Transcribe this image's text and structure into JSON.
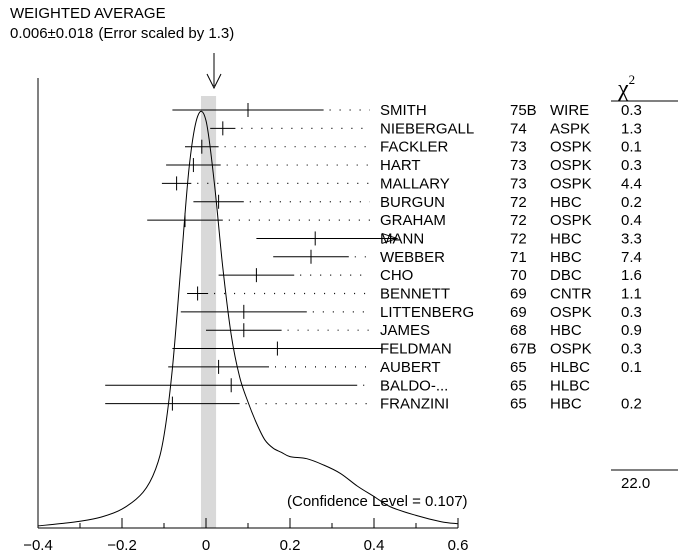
{
  "chart_data": {
    "type": "ideogram",
    "header": {
      "title": "WEIGHTED AVERAGE",
      "value": "0.006",
      "pm": "±",
      "error": "0.018",
      "note": "(Error scaled by 1.3)"
    },
    "weighted_average": 0.006,
    "weighted_error": 0.018,
    "chi2_header": "χ",
    "chi2_sup": "2",
    "xlim": [
      -0.4,
      0.6
    ],
    "xticks": [
      -0.4,
      -0.2,
      0,
      0.2,
      0.4,
      0.6
    ],
    "xtick_labels": [
      "−0.4",
      "−0.2",
      "0",
      "0.2",
      "0.4",
      "0.6"
    ],
    "measurements": [
      {
        "author": "SMITH",
        "year": "75B",
        "tech": "WIRE",
        "chi2": "0.3",
        "value": 0.1,
        "error": 0.18
      },
      {
        "author": "NIEBERGALL",
        "year": "74",
        "tech": "ASPK",
        "chi2": "1.3",
        "value": 0.04,
        "error": 0.03
      },
      {
        "author": "FACKLER",
        "year": "73",
        "tech": "OSPK",
        "chi2": "0.1",
        "value": -0.01,
        "error": 0.04
      },
      {
        "author": "HART",
        "year": "73",
        "tech": "OSPK",
        "chi2": "0.3",
        "value": -0.03,
        "error": 0.065
      },
      {
        "author": "MALLARY",
        "year": "73",
        "tech": "OSPK",
        "chi2": "4.4",
        "value": -0.07,
        "error": 0.035
      },
      {
        "author": "BURGUN",
        "year": "72",
        "tech": "HBC",
        "chi2": "0.2",
        "value": 0.03,
        "error": 0.06
      },
      {
        "author": "GRAHAM",
        "year": "72",
        "tech": "OSPK",
        "chi2": "0.4",
        "value": -0.05,
        "error": 0.09
      },
      {
        "author": "MANN",
        "year": "72",
        "tech": "HBC",
        "chi2": "3.3",
        "value": 0.26,
        "error": 0.14,
        "arrow": true
      },
      {
        "author": "WEBBER",
        "year": "71",
        "tech": "HBC",
        "chi2": "7.4",
        "value": 0.25,
        "error": 0.09
      },
      {
        "author": "CHO",
        "year": "70",
        "tech": "DBC",
        "chi2": "1.6",
        "value": 0.12,
        "error": 0.09
      },
      {
        "author": "BENNETT",
        "year": "69",
        "tech": "CNTR",
        "chi2": "1.1",
        "value": -0.02,
        "error": 0.025
      },
      {
        "author": "LITTENBERG",
        "year": "69",
        "tech": "OSPK",
        "chi2": "0.3",
        "value": 0.09,
        "error": 0.15
      },
      {
        "author": "JAMES",
        "year": "68",
        "tech": "HBC",
        "chi2": "0.9",
        "value": 0.09,
        "error": 0.09
      },
      {
        "author": "FELDMAN",
        "year": "67B",
        "tech": "OSPK",
        "chi2": "0.3",
        "value": 0.17,
        "error": 0.25
      },
      {
        "author": "AUBERT",
        "year": "65",
        "tech": "HLBC",
        "chi2": "0.1",
        "value": 0.03,
        "error": 0.12
      },
      {
        "author": "BALDO-...",
        "year": "65",
        "tech": "HLBC",
        "chi2": "",
        "value": 0.06,
        "error": 0.3
      },
      {
        "author": "FRANZINI",
        "year": "65",
        "tech": "HBC",
        "chi2": "0.2",
        "value": -0.08,
        "error": 0.16
      }
    ],
    "chi2_total": "22.0",
    "confidence_level": "(Confidence Level = 0.107)",
    "ideogram_curve": [
      [
        -0.4,
        0.005
      ],
      [
        -0.35,
        0.01
      ],
      [
        -0.3,
        0.016
      ],
      [
        -0.25,
        0.026
      ],
      [
        -0.2,
        0.045
      ],
      [
        -0.15,
        0.085
      ],
      [
        -0.12,
        0.14
      ],
      [
        -0.1,
        0.22
      ],
      [
        -0.08,
        0.38
      ],
      [
        -0.06,
        0.62
      ],
      [
        -0.04,
        0.86
      ],
      [
        -0.02,
        0.98
      ],
      [
        0.0,
        0.97
      ],
      [
        0.02,
        0.82
      ],
      [
        0.04,
        0.62
      ],
      [
        0.06,
        0.46
      ],
      [
        0.08,
        0.36
      ],
      [
        0.1,
        0.3
      ],
      [
        0.12,
        0.25
      ],
      [
        0.14,
        0.21
      ],
      [
        0.16,
        0.19
      ],
      [
        0.18,
        0.18
      ],
      [
        0.2,
        0.17
      ],
      [
        0.24,
        0.165
      ],
      [
        0.28,
        0.15
      ],
      [
        0.32,
        0.13
      ],
      [
        0.36,
        0.1
      ],
      [
        0.4,
        0.075
      ],
      [
        0.44,
        0.05
      ],
      [
        0.5,
        0.03
      ],
      [
        0.56,
        0.015
      ],
      [
        0.6,
        0.01
      ]
    ]
  }
}
